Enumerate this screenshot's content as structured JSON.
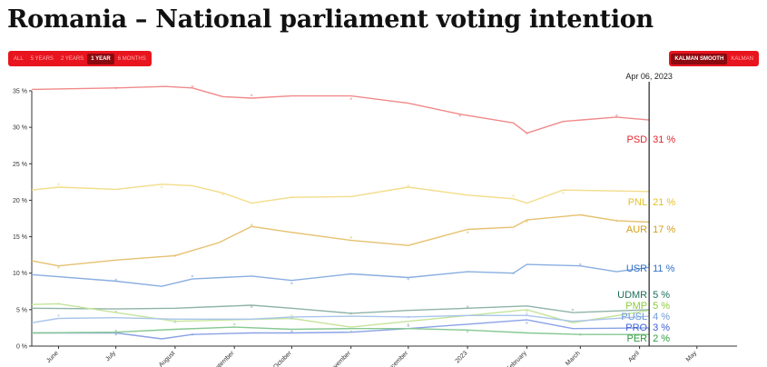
{
  "title": "Romania – National parliament voting intention",
  "range_buttons": [
    {
      "label": "All",
      "active": false
    },
    {
      "label": "5 years",
      "active": false
    },
    {
      "label": "2 years",
      "active": false
    },
    {
      "label": "1 year",
      "active": true
    },
    {
      "label": "6 months",
      "active": false
    }
  ],
  "smoothing_buttons": [
    {
      "label": "Kalman smooth",
      "active": true
    },
    {
      "label": "Kalman",
      "active": false
    }
  ],
  "chart_data": {
    "type": "line",
    "title": "Romania – National parliament voting intention",
    "cursor_date": "Apr 06, 2023",
    "cursor_x": "2023-04-06",
    "x_domain": [
      "2022-05-18",
      "2023-05-22"
    ],
    "ylim": [
      0,
      35
    ],
    "y_ticks": [
      "0 %",
      "5 %",
      "10 %",
      "15 %",
      "20 %",
      "25 %",
      "30 %",
      "35 %"
    ],
    "x_ticks": [
      {
        "label": "June",
        "date": "2022-06-01"
      },
      {
        "label": "July",
        "date": "2022-07-01"
      },
      {
        "label": "August",
        "date": "2022-08-01"
      },
      {
        "label": "September",
        "date": "2022-09-01"
      },
      {
        "label": "October",
        "date": "2022-10-01"
      },
      {
        "label": "November",
        "date": "2022-11-01"
      },
      {
        "label": "December",
        "date": "2022-12-01"
      },
      {
        "label": "2023",
        "date": "2023-01-01"
      },
      {
        "label": "February",
        "date": "2023-02-01"
      },
      {
        "label": "March",
        "date": "2023-03-01"
      },
      {
        "label": "April",
        "date": "2023-04-01"
      },
      {
        "label": "May",
        "date": "2023-05-01"
      }
    ],
    "series": [
      {
        "name": "PSD",
        "value_label": "31 %",
        "color": "#e8262e",
        "line_color": "#f08a8a",
        "x": [
          "2022-05-18",
          "2022-07-01",
          "2022-07-27",
          "2022-08-10",
          "2022-08-26",
          "2022-09-10",
          "2022-10-01",
          "2022-11-01",
          "2022-12-01",
          "2022-12-28",
          "2023-01-25",
          "2023-02-01",
          "2023-02-20",
          "2023-03-20",
          "2023-04-06"
        ],
        "values": [
          35.2,
          35.4,
          35.6,
          35.4,
          34.2,
          34.0,
          34.3,
          34.3,
          33.3,
          31.8,
          30.6,
          29.2,
          30.8,
          31.4,
          31.0
        ]
      },
      {
        "name": "PNL",
        "value_label": "21 %",
        "color": "#e3c22a",
        "line_color": "#f2dd8a",
        "x": [
          "2022-05-18",
          "2022-06-01",
          "2022-07-01",
          "2022-07-25",
          "2022-08-10",
          "2022-08-26",
          "2022-09-10",
          "2022-10-01",
          "2022-11-01",
          "2022-12-01",
          "2023-01-01",
          "2023-01-25",
          "2023-02-01",
          "2023-02-20",
          "2023-04-06"
        ],
        "values": [
          21.4,
          21.8,
          21.5,
          22.2,
          22.0,
          21.0,
          19.6,
          20.4,
          20.5,
          21.8,
          20.7,
          20.2,
          19.6,
          21.4,
          21.2
        ]
      },
      {
        "name": "AUR",
        "value_label": "17 %",
        "color": "#d4a018",
        "line_color": "#e6c170",
        "x": [
          "2022-05-18",
          "2022-06-01",
          "2022-07-01",
          "2022-08-01",
          "2022-08-24",
          "2022-09-10",
          "2022-10-01",
          "2022-11-01",
          "2022-12-01",
          "2023-01-01",
          "2023-01-25",
          "2023-02-01",
          "2023-03-01",
          "2023-03-20",
          "2023-04-06"
        ],
        "values": [
          11.7,
          11.0,
          11.8,
          12.4,
          14.2,
          16.4,
          15.6,
          14.5,
          13.8,
          16.0,
          16.3,
          17.3,
          18.0,
          17.2,
          17.0
        ]
      },
      {
        "name": "USR",
        "value_label": "11 %",
        "color": "#2f6fc6",
        "line_color": "#8aaee0",
        "x": [
          "2022-05-18",
          "2022-07-01",
          "2022-07-25",
          "2022-08-10",
          "2022-09-10",
          "2022-10-01",
          "2022-11-01",
          "2022-12-01",
          "2023-01-01",
          "2023-01-25",
          "2023-02-01",
          "2023-03-01",
          "2023-03-20",
          "2023-04-06"
        ],
        "values": [
          9.8,
          8.9,
          8.2,
          9.2,
          9.6,
          9.0,
          9.9,
          9.4,
          10.2,
          10.0,
          11.2,
          11.0,
          10.2,
          10.8
        ]
      },
      {
        "name": "UDMR",
        "value_label": "5 %",
        "color": "#1e6f5c",
        "line_color": "#8fb3a8",
        "x": [
          "2022-05-18",
          "2022-07-01",
          "2022-08-01",
          "2022-09-10",
          "2022-10-01",
          "2022-11-01",
          "2022-12-01",
          "2023-01-01",
          "2023-02-01",
          "2023-02-25",
          "2023-04-06"
        ],
        "values": [
          5.2,
          5.1,
          5.2,
          5.6,
          5.2,
          4.5,
          4.9,
          5.2,
          5.5,
          4.6,
          5.0
        ]
      },
      {
        "name": "PMP",
        "value_label": "5 %",
        "color": "#8ccc3a",
        "line_color": "#c4e49a",
        "x": [
          "2022-05-18",
          "2022-06-01",
          "2022-07-01",
          "2022-08-01",
          "2022-09-01",
          "2022-10-01",
          "2022-11-01",
          "2022-12-01",
          "2023-01-01",
          "2023-02-01",
          "2023-02-25",
          "2023-04-06"
        ],
        "values": [
          5.7,
          5.8,
          4.6,
          3.4,
          3.6,
          3.8,
          2.6,
          3.4,
          4.2,
          5.0,
          3.2,
          4.9
        ]
      },
      {
        "name": "PUSL",
        "value_label": "4 %",
        "color": "#6a9ad8",
        "line_color": "#a9c4ea",
        "x": [
          "2022-05-18",
          "2022-06-01",
          "2022-07-01",
          "2022-08-01",
          "2022-09-10",
          "2022-10-01",
          "2022-11-01",
          "2022-12-01",
          "2023-01-01",
          "2023-02-01",
          "2023-02-25",
          "2023-04-06"
        ],
        "values": [
          3.2,
          3.8,
          3.9,
          3.7,
          3.7,
          4.0,
          4.1,
          4.0,
          4.2,
          4.2,
          3.4,
          4.1
        ]
      },
      {
        "name": "PRO",
        "value_label": "3 %",
        "color": "#3a5fd0",
        "line_color": "#8ba2e6",
        "x": [
          "2022-05-18",
          "2022-07-01",
          "2022-07-25",
          "2022-08-10",
          "2022-09-10",
          "2022-10-01",
          "2022-11-01",
          "2022-12-01",
          "2023-01-01",
          "2023-02-01",
          "2023-02-25",
          "2023-04-06"
        ],
        "values": [
          1.8,
          1.8,
          1.0,
          1.6,
          1.8,
          1.8,
          1.9,
          2.4,
          3.0,
          3.6,
          2.4,
          2.5
        ]
      },
      {
        "name": "PER",
        "value_label": "2 %",
        "color": "#2e9c3e",
        "line_color": "#86c892",
        "x": [
          "2022-05-18",
          "2022-07-01",
          "2022-08-01",
          "2022-09-01",
          "2022-10-01",
          "2022-11-01",
          "2022-12-01",
          "2023-01-01",
          "2023-02-01",
          "2023-03-01",
          "2023-04-06"
        ],
        "values": [
          1.8,
          1.9,
          2.3,
          2.6,
          2.3,
          2.4,
          2.4,
          2.2,
          1.8,
          1.6,
          1.6
        ]
      }
    ],
    "legend": "end-of-line labels",
    "grid": false
  }
}
